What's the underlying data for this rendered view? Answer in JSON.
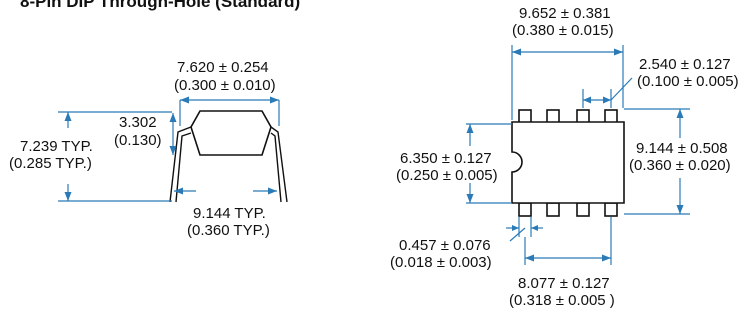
{
  "title": "8-Pin DIP Through-Hole (Standard)",
  "side_view": {
    "width_top": "7.620 ± 0.254",
    "width_top_in": "(0.300 ± 0.010)",
    "body_height": "3.302",
    "body_height_in": "(0.130)",
    "overall_height": "7.239 TYP.",
    "overall_height_in": "(0.285 TYP.)",
    "lead_span": "9.144 TYP.",
    "lead_span_in": "(0.360 TYP.)"
  },
  "top_view": {
    "body_length": "9.652 ± 0.381",
    "body_length_in": "(0.380 ± 0.015)",
    "pitch": "2.540 ± 0.127",
    "pitch_in": "(0.100 ± 0.005)",
    "body_width": "6.350 ± 0.127",
    "body_width_in": "(0.250 ± 0.005)",
    "row_spacing": "9.144 ± 0.508",
    "row_spacing_in": "(0.360 ± 0.020)",
    "lead_width": "0.457 ± 0.076",
    "lead_width_in": "(0.018 ± 0.003)",
    "lead_row_length": "8.077 ± 0.127",
    "lead_row_length_in": "(0.318 ± 0.005 )"
  }
}
